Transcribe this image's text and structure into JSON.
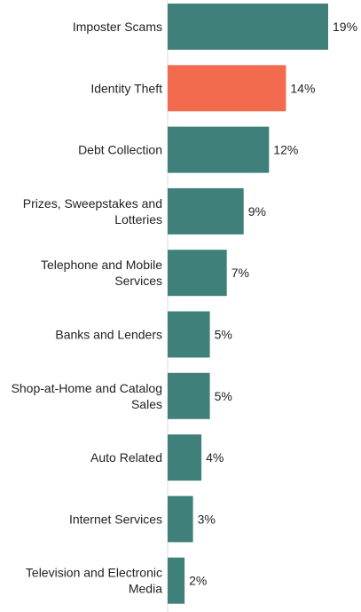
{
  "colors": {
    "bar": "#3f807a",
    "highlight": "#f26b4f",
    "axis": "#dddddd",
    "text": "#222222"
  },
  "chart_data": {
    "type": "bar",
    "orientation": "horizontal",
    "title": "",
    "xlabel": "",
    "ylabel": "",
    "xlim": [
      0,
      19
    ],
    "grid": false,
    "legend": "none",
    "highlight_category": "Identity Theft",
    "categories": [
      "Imposter Scams",
      "Identity Theft",
      "Debt Collection",
      "Prizes, Sweepstakes and Lotteries",
      "Telephone and Mobile Services",
      "Banks and Lenders",
      "Shop-at-Home and Catalog Sales",
      "Auto Related",
      "Internet Services",
      "Television and Electronic Media"
    ],
    "category_lines": [
      [
        "Imposter Scams"
      ],
      [
        "Identity Theft"
      ],
      [
        "Debt Collection"
      ],
      [
        "Prizes, Sweepstakes and",
        "Lotteries"
      ],
      [
        "Telephone and Mobile",
        "Services"
      ],
      [
        "Banks and Lenders"
      ],
      [
        "Shop-at-Home and Catalog",
        "Sales"
      ],
      [
        "Auto Related"
      ],
      [
        "Internet Services"
      ],
      [
        "Television and Electronic",
        "Media"
      ]
    ],
    "values": [
      19,
      14,
      12,
      9,
      7,
      5,
      5,
      4,
      3,
      2
    ],
    "value_labels": [
      "19%",
      "14%",
      "12%",
      "9%",
      "7%",
      "5%",
      "5%",
      "4%",
      "3%",
      "2%"
    ]
  }
}
